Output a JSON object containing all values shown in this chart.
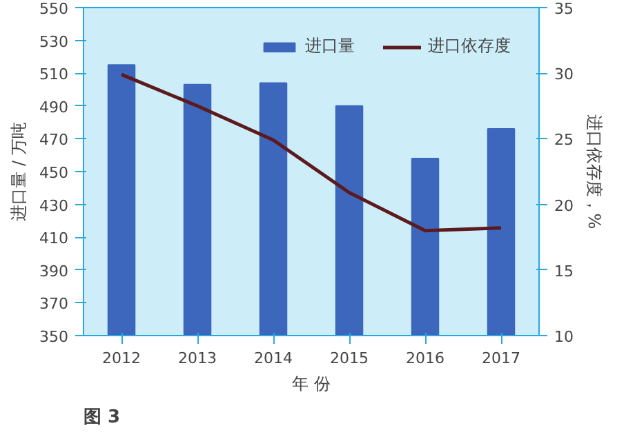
{
  "chart_data": {
    "type": "bar",
    "categories": [
      "2012",
      "2013",
      "2014",
      "2015",
      "2016",
      "2017"
    ],
    "xlabel": "年 份",
    "ylabel": "进口量 / 万吨",
    "y2label": "进口依存度，%",
    "ylim": [
      350,
      550
    ],
    "yticks": [
      350,
      370,
      390,
      410,
      430,
      450,
      470,
      490,
      510,
      530,
      550
    ],
    "y2lim": [
      10,
      35
    ],
    "y2ticks": [
      10,
      15,
      20,
      25,
      30,
      35
    ],
    "series": [
      {
        "name": "进口量",
        "color": "#3c67bd",
        "values": [
          515,
          503,
          504,
          490,
          458,
          476
        ]
      },
      {
        "name": "进口依存度",
        "type": "line",
        "axis": "y2",
        "color": "#5c1a1e",
        "values": [
          29.9,
          27.5,
          24.9,
          20.9,
          18.0,
          18.2
        ]
      }
    ],
    "legend": "top right",
    "grid": false,
    "annotations": [
      "图 3"
    ]
  }
}
